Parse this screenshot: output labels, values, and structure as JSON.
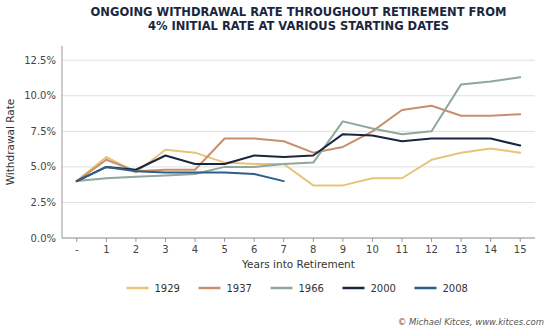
{
  "chart_data": {
    "type": "line",
    "title": "ONGOING WITHDRAWAL RATE THROUGHOUT RETIREMENT FROM\n4% INITIAL RATE AT VARIOUS STARTING DATES",
    "x_label": "Years into Retirement",
    "y_label": "Withdrawal Rate",
    "x": [
      0,
      1,
      2,
      3,
      4,
      5,
      6,
      7,
      8,
      9,
      10,
      11,
      12,
      13,
      14,
      15
    ],
    "xlim": [
      -0.5,
      15.5
    ],
    "xticks": [
      {
        "value": 0,
        "label": "-"
      },
      1,
      2,
      3,
      4,
      5,
      6,
      7,
      8,
      9,
      10,
      11,
      12,
      13,
      14,
      15
    ],
    "ylim": [
      0.0,
      0.135
    ],
    "yticks": [
      {
        "value": 0.0,
        "label": "0.0%"
      },
      {
        "value": 0.025,
        "label": "2.5%"
      },
      {
        "value": 0.05,
        "label": "5.0%"
      },
      {
        "value": 0.075,
        "label": "7.5%"
      },
      {
        "value": 0.1,
        "label": "10.0%"
      },
      {
        "value": 0.125,
        "label": "12.5%"
      }
    ],
    "grid": true,
    "legend": "bottom",
    "series": [
      {
        "name": "1929",
        "color": "#e8c47a",
        "values": [
          0.04,
          0.057,
          0.046,
          0.062,
          0.06,
          0.053,
          0.052,
          0.052,
          0.037,
          0.037,
          0.042,
          0.042,
          0.055,
          0.06,
          0.063,
          0.06
        ]
      },
      {
        "name": "1937",
        "color": "#c8906a",
        "values": [
          0.04,
          0.055,
          0.047,
          0.048,
          0.048,
          0.07,
          0.07,
          0.068,
          0.06,
          0.064,
          0.075,
          0.09,
          0.093,
          0.086,
          0.086,
          0.087
        ]
      },
      {
        "name": "1966",
        "color": "#8fa89a",
        "values": [
          0.04,
          0.042,
          0.043,
          0.044,
          0.045,
          0.05,
          0.05,
          0.052,
          0.053,
          0.082,
          0.077,
          0.073,
          0.075,
          0.108,
          0.11,
          0.113
        ]
      },
      {
        "name": "2000",
        "color": "#1a2640",
        "values": [
          0.04,
          0.05,
          0.048,
          0.058,
          0.052,
          0.052,
          0.058,
          0.057,
          0.058,
          0.073,
          0.072,
          0.068,
          0.07,
          0.07,
          0.07,
          0.065
        ]
      },
      {
        "name": "2008",
        "color": "#2e5f8a",
        "values": [
          0.04,
          0.05,
          0.047,
          0.046,
          0.046,
          0.046,
          0.045,
          0.04,
          null,
          null,
          null,
          null,
          null,
          null,
          null,
          null
        ]
      }
    ],
    "annotations": [
      "© Michael Kitces, www.kitces.com"
    ]
  }
}
